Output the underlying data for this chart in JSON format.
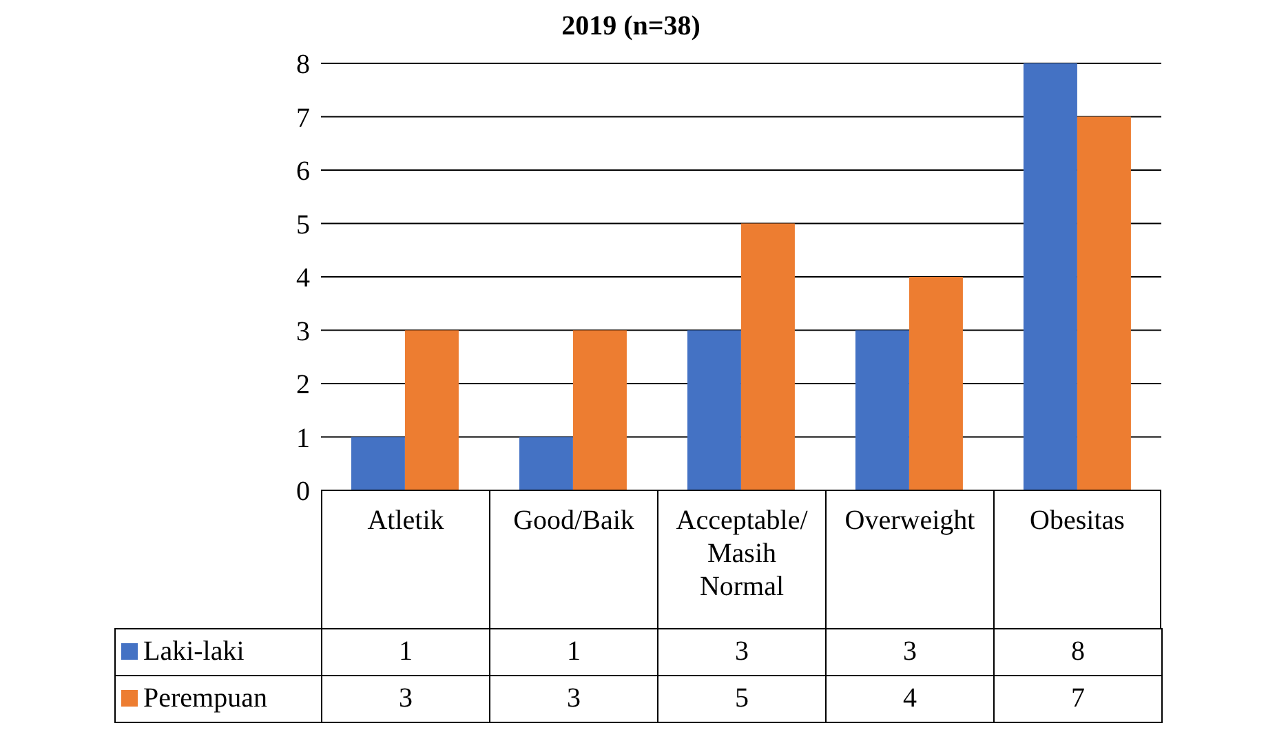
{
  "chart_data": {
    "type": "bar",
    "title": "2019 (n=38)",
    "categories": [
      "Atletik",
      "Good/Baik",
      "Acceptable/Masih Normal",
      "Overweight",
      "Obesitas"
    ],
    "series": [
      {
        "name": "Laki-laki",
        "color": "#4472c4",
        "values": [
          1,
          1,
          3,
          3,
          8
        ]
      },
      {
        "name": "Perempuan",
        "color": "#ed7d31",
        "values": [
          3,
          3,
          5,
          4,
          7
        ]
      }
    ],
    "ylim": [
      0,
      8
    ],
    "yticks": [
      0,
      1,
      2,
      3,
      4,
      5,
      6,
      7,
      8
    ],
    "grid": "y",
    "legend": "bottom",
    "data_labels": true
  }
}
